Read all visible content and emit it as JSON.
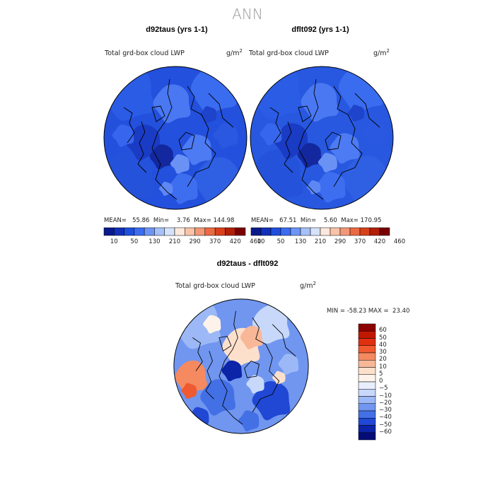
{
  "season": "ANN",
  "units_label": "g/m",
  "units_exp": "2",
  "panels": [
    {
      "title": "d92taus (yrs 1-1)",
      "subtitle": "Total grd-box cloud LWP",
      "mean_label": "MEAN=",
      "mean": "55.86",
      "min_label": "Min=",
      "min": "3.76",
      "max_label": "Max=",
      "max": "144.98"
    },
    {
      "title": "dflt092 (yrs 1-1)",
      "subtitle": "Total grd-box cloud LWP",
      "mean_label": "MEAN=",
      "mean": "67.51",
      "min_label": "Min=",
      "min": "5.60",
      "max_label": "Max=",
      "max": "170.95"
    }
  ],
  "diff": {
    "title": "d92taus - dflt092",
    "subtitle": "Total grd-box cloud LWP",
    "min_label": "MIN =",
    "min": "-58.23",
    "max_label": "MAX =",
    "max": "23.40"
  },
  "chart_data": [
    {
      "type": "heatmap",
      "title": "d92taus (yrs 1-1)",
      "subtitle": "Total grd-box cloud LWP",
      "projection": "north-polar-stereographic",
      "units": "g/m2",
      "mean": 55.86,
      "min": 3.76,
      "max": 144.98,
      "colorbar_ticks": [
        10,
        50,
        130,
        210,
        290,
        370,
        420,
        460
      ],
      "colors": [
        "#0a1a8c",
        "#1230b8",
        "#1f4fdc",
        "#3c6cf0",
        "#6e94f5",
        "#a6c0f8",
        "#d6e2fa",
        "#fde8dc",
        "#f8c3a8",
        "#f29878",
        "#ea6a44",
        "#d8401c",
        "#b22008",
        "#7a0000"
      ]
    },
    {
      "type": "heatmap",
      "title": "dflt092 (yrs 1-1)",
      "subtitle": "Total grd-box cloud LWP",
      "projection": "north-polar-stereographic",
      "units": "g/m2",
      "mean": 67.51,
      "min": 5.6,
      "max": 170.95,
      "colorbar_ticks": [
        10,
        50,
        130,
        210,
        290,
        370,
        420,
        460
      ],
      "colors": [
        "#0a1a8c",
        "#1230b8",
        "#1f4fdc",
        "#3c6cf0",
        "#6e94f5",
        "#a6c0f8",
        "#d6e2fa",
        "#fde8dc",
        "#f8c3a8",
        "#f29878",
        "#ea6a44",
        "#d8401c",
        "#b22008",
        "#7a0000"
      ]
    },
    {
      "type": "heatmap",
      "title": "d92taus - dflt092",
      "subtitle": "Total grd-box cloud LWP",
      "projection": "north-polar-stereographic",
      "units": "g/m2",
      "min": -58.23,
      "max": 23.4,
      "colorbar_levels": [
        60,
        50,
        40,
        30,
        20,
        10,
        5,
        0,
        -5,
        -10,
        -20,
        -30,
        -40,
        -50,
        -60
      ],
      "colors": [
        "#8b0000",
        "#c01800",
        "#e03010",
        "#f05a30",
        "#f58a60",
        "#f8b898",
        "#fde0cc",
        "#fdf3ea",
        "#e8eefc",
        "#c8d8fa",
        "#9cb8f6",
        "#7096f0",
        "#4470e6",
        "#2048d4",
        "#0c24a8",
        "#040c78"
      ]
    }
  ]
}
